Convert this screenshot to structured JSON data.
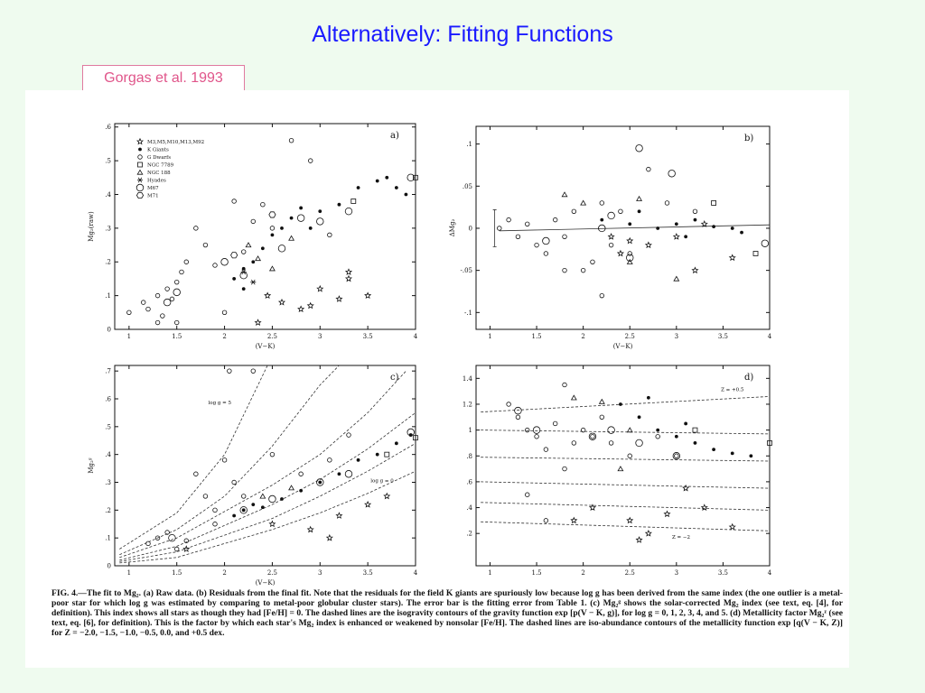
{
  "title": "Alternatively: Fitting Functions",
  "citation": "Gorgas et al. 1993",
  "caption": "FIG. 4.—The fit to Mg₂. (a) Raw data. (b) Residuals from the final fit. Note that the residuals for the field K giants are spuriously low because log g has been derived from the same index (the one outlier is a metal-poor star for which log g was estimated by comparing to metal-poor globular cluster stars). The error bar is the fitting error from Table 1. (c) Mg₂ᵍ shows the solar-corrected Mg₂ index (see text, eq. [4], for definition). This index shows all stars as though they had [Fe/H] = 0. The dashed lines are the isogravity contours of the gravity function exp [p(V − K, g)], for log g = 0, 1, 2, 3, 4, and 5. (d) Metallicity factor Mg₂ᶻ (see text, eq. [6], for definition). This is the factor by which each star's Mg₂ index is enhanced or weakened by nonsolar [Fe/H]. The dashed lines are iso-abundance contours of the metallicity function exp [q(V − K, Z)] for Z = −2.0, −1.5, −1.0, −0.5, 0.0, and +0.5 dex.",
  "chart_data": [
    {
      "type": "scatter",
      "panel_label": "a)",
      "xlabel": "(V−K)",
      "ylabel": "Mg₂(raw)",
      "xlim": [
        0.85,
        4.0
      ],
      "xticks": [
        1,
        1.5,
        2,
        2.5,
        3,
        3.5,
        4
      ],
      "ylim": [
        0,
        0.61
      ],
      "yticks": [
        0,
        {
          "value": 0.1,
          "label": ".1"
        },
        {
          "value": 0.2,
          "label": ".2"
        },
        {
          "value": 0.3,
          "label": ".3"
        },
        {
          "value": 0.4,
          "label": ".4"
        },
        {
          "value": 0.5,
          "label": ".5"
        },
        {
          "value": 0.6,
          "label": ".6"
        }
      ],
      "legend": "upper left",
      "series": [
        {
          "name": "M3,M5,M10,M13,M92",
          "marker": "star",
          "color": "#111",
          "x": [
            2.35,
            2.6,
            2.8,
            2.9,
            3.0,
            3.2,
            3.3,
            3.5,
            2.45,
            3.3
          ],
          "y": [
            0.02,
            0.08,
            0.06,
            0.07,
            0.12,
            0.09,
            0.15,
            0.1,
            0.1,
            0.17
          ]
        },
        {
          "name": "K Giants",
          "marker": "dot",
          "color": "#111",
          "x": [
            2.1,
            2.2,
            2.3,
            2.4,
            2.5,
            2.6,
            2.7,
            2.8,
            2.9,
            3.0,
            3.2,
            3.4,
            3.6,
            3.7,
            3.8,
            3.9,
            2.2
          ],
          "y": [
            0.15,
            0.18,
            0.2,
            0.24,
            0.28,
            0.3,
            0.33,
            0.36,
            0.3,
            0.35,
            0.37,
            0.42,
            0.44,
            0.45,
            0.42,
            0.4,
            0.12
          ]
        },
        {
          "name": "G Dwarfs",
          "marker": "circle",
          "color": "#111",
          "x": [
            1.0,
            1.15,
            1.2,
            1.3,
            1.35,
            1.4,
            1.45,
            1.5,
            1.55,
            1.6,
            1.7,
            1.8,
            1.9,
            2.0,
            2.1,
            2.2,
            2.3,
            2.4,
            2.5,
            2.7,
            2.9,
            3.1,
            1.3,
            1.5
          ],
          "y": [
            0.05,
            0.08,
            0.06,
            0.1,
            0.04,
            0.12,
            0.09,
            0.14,
            0.17,
            0.2,
            0.3,
            0.25,
            0.19,
            0.05,
            0.38,
            0.23,
            0.32,
            0.37,
            0.3,
            0.56,
            0.5,
            0.28,
            0.02,
            0.02
          ]
        },
        {
          "name": "NGC 7789",
          "marker": "square",
          "color": "#111",
          "x": [
            3.35,
            4.0
          ],
          "y": [
            0.38,
            0.45
          ]
        },
        {
          "name": "NGC 188",
          "marker": "triangle",
          "color": "#111",
          "x": [
            2.25,
            2.35,
            2.7,
            2.5
          ],
          "y": [
            0.25,
            0.21,
            0.27,
            0.18
          ]
        },
        {
          "name": "Hyades",
          "marker": "asterisk",
          "color": "#111",
          "x": [
            2.2,
            2.3
          ],
          "y": [
            0.17,
            0.14
          ]
        },
        {
          "name": "M67",
          "marker": "big-circle",
          "color": "#111",
          "x": [
            1.4,
            1.5,
            2.0,
            2.2,
            2.6,
            2.8,
            3.0,
            3.3,
            3.95
          ],
          "y": [
            0.08,
            0.11,
            0.2,
            0.16,
            0.24,
            0.33,
            0.32,
            0.35,
            0.45
          ]
        },
        {
          "name": "M71",
          "marker": "hexagon",
          "color": "#111",
          "x": [
            2.1,
            2.5
          ],
          "y": [
            0.22,
            0.34
          ]
        }
      ]
    },
    {
      "type": "scatter",
      "panel_label": "b)",
      "xlabel": "(V−K)",
      "ylabel": "ΔMg₂",
      "xlim": [
        0.85,
        4.0
      ],
      "xticks": [
        1,
        1.5,
        2,
        2.5,
        3,
        3.5,
        4
      ],
      "ylim": [
        -0.12,
        0.121
      ],
      "yticks": [
        {
          "value": -0.1,
          "label": "-.1"
        },
        {
          "value": -0.05,
          "label": "-.05"
        },
        0,
        {
          "value": 0.05,
          "label": ".05"
        },
        {
          "value": 0.1,
          "label": ".1"
        }
      ],
      "fit_line": {
        "x": [
          1.1,
          4.0
        ],
        "y": [
          -0.003,
          0.004
        ]
      },
      "error_bar": {
        "x": 1.05,
        "y": 0,
        "error": 0.022
      },
      "series": [
        {
          "marker": "star",
          "color": "#111",
          "x": [
            2.3,
            2.5,
            2.7,
            3.0,
            3.2,
            3.6,
            3.3,
            2.4
          ],
          "y": [
            -0.01,
            -0.015,
            -0.02,
            -0.01,
            -0.05,
            -0.035,
            0.005,
            -0.03
          ]
        },
        {
          "marker": "dot",
          "color": "#111",
          "x": [
            2.2,
            2.5,
            2.8,
            3.0,
            3.2,
            3.4,
            3.6,
            3.7,
            2.6,
            3.1
          ],
          "y": [
            0.01,
            0.005,
            0,
            0.005,
            0.01,
            0.002,
            0,
            -0.005,
            0.02,
            -0.01
          ]
        },
        {
          "marker": "circle",
          "color": "#111",
          "x": [
            1.1,
            1.2,
            1.3,
            1.4,
            1.5,
            1.6,
            1.7,
            1.8,
            1.9,
            2.0,
            2.1,
            2.2,
            2.3,
            2.4,
            2.5,
            2.7,
            2.9,
            2.2,
            1.8,
            3.2
          ],
          "y": [
            0,
            0.01,
            -0.01,
            0.005,
            -0.02,
            -0.03,
            0.01,
            -0.01,
            0.02,
            -0.05,
            -0.04,
            0.03,
            -0.02,
            0.02,
            -0.03,
            0.07,
            0.03,
            -0.08,
            -0.05,
            0.02
          ]
        },
        {
          "marker": "square",
          "color": "#111",
          "x": [
            3.85,
            3.4
          ],
          "y": [
            -0.03,
            0.03
          ]
        },
        {
          "marker": "triangle",
          "color": "#111",
          "x": [
            1.8,
            2.0,
            2.5,
            3.0,
            2.6
          ],
          "y": [
            0.04,
            0.03,
            -0.04,
            -0.06,
            0.035
          ]
        },
        {
          "marker": "big-circle",
          "color": "#111",
          "x": [
            1.6,
            2.2,
            2.3,
            2.6,
            2.95,
            2.5,
            3.95
          ],
          "y": [
            -0.015,
            0.0,
            0.015,
            0.095,
            0.065,
            -0.035,
            -0.018
          ]
        }
      ]
    },
    {
      "type": "scatter",
      "panel_label": "c)",
      "xlabel": "(V−K)",
      "ylabel": "Mg₂ᵍ",
      "xlim": [
        0.85,
        4.0
      ],
      "xticks": [
        1,
        1.5,
        2,
        2.5,
        3,
        3.5,
        4
      ],
      "ylim": [
        0,
        0.72
      ],
      "yticks": [
        0,
        {
          "value": 0.1,
          "label": ".1"
        },
        {
          "value": 0.2,
          "label": ".2"
        },
        {
          "value": 0.3,
          "label": ".3"
        },
        {
          "value": 0.4,
          "label": ".4"
        },
        {
          "value": 0.5,
          "label": ".5"
        },
        {
          "value": 0.6,
          "label": ".6"
        },
        {
          "value": 0.7,
          "label": ".7"
        }
      ],
      "curves": [
        {
          "x": [
            0.9,
            1.5,
            2.0,
            2.45
          ],
          "y": [
            0.06,
            0.19,
            0.4,
            0.72
          ]
        },
        {
          "x": [
            0.9,
            1.5,
            2.0,
            2.5,
            3.0,
            3.2
          ],
          "y": [
            0.04,
            0.13,
            0.25,
            0.43,
            0.65,
            0.72
          ]
        },
        {
          "x": [
            0.9,
            1.5,
            2.5,
            3.0,
            3.5,
            3.9
          ],
          "y": [
            0.03,
            0.1,
            0.29,
            0.4,
            0.55,
            0.7
          ]
        },
        {
          "x": [
            0.9,
            1.5,
            2.5,
            3.0,
            3.5,
            4.0
          ],
          "y": [
            0.02,
            0.07,
            0.22,
            0.31,
            0.42,
            0.55
          ]
        },
        {
          "x": [
            0.9,
            1.5,
            2.5,
            3.0,
            3.5,
            4.0
          ],
          "y": [
            0.015,
            0.05,
            0.17,
            0.25,
            0.34,
            0.44
          ]
        },
        {
          "x": [
            0.9,
            1.5,
            2.5,
            3.0,
            3.5,
            4.0
          ],
          "y": [
            0.01,
            0.03,
            0.13,
            0.19,
            0.26,
            0.34
          ]
        }
      ],
      "annotations": [
        {
          "text": "log g = 5",
          "x": 1.95,
          "y": 0.58
        },
        {
          "text": "log g = 0",
          "x": 3.65,
          "y": 0.3
        }
      ],
      "series": [
        {
          "marker": "star",
          "color": "#111",
          "x": [
            1.6,
            2.5,
            2.9,
            3.2,
            3.5,
            3.7,
            3.1
          ],
          "y": [
            0.06,
            0.15,
            0.13,
            0.18,
            0.22,
            0.25,
            0.1
          ]
        },
        {
          "marker": "dot",
          "color": "#111",
          "x": [
            2.1,
            2.2,
            2.3,
            2.4,
            2.6,
            2.8,
            3.0,
            3.2,
            3.4,
            3.6,
            3.8,
            3.95
          ],
          "y": [
            0.18,
            0.2,
            0.22,
            0.21,
            0.24,
            0.27,
            0.3,
            0.33,
            0.38,
            0.4,
            0.44,
            0.47
          ]
        },
        {
          "marker": "circle",
          "color": "#111",
          "x": [
            1.2,
            1.3,
            1.4,
            1.5,
            1.6,
            1.8,
            1.9,
            2.0,
            2.1,
            2.2,
            1.7,
            2.3,
            2.05,
            2.5,
            3.3,
            2.8,
            3.1,
            1.9
          ],
          "y": [
            0.08,
            0.1,
            0.12,
            0.06,
            0.09,
            0.25,
            0.2,
            0.38,
            0.3,
            0.25,
            0.33,
            0.7,
            0.7,
            0.4,
            0.47,
            0.33,
            0.38,
            0.15
          ]
        },
        {
          "marker": "square",
          "color": "#111",
          "x": [
            3.7,
            4.0
          ],
          "y": [
            0.4,
            0.46
          ]
        },
        {
          "marker": "triangle",
          "color": "#111",
          "x": [
            2.4,
            2.7
          ],
          "y": [
            0.25,
            0.28
          ]
        },
        {
          "marker": "big-circle",
          "color": "#111",
          "x": [
            1.45,
            2.2,
            2.5,
            3.0,
            3.3,
            3.95
          ],
          "y": [
            0.1,
            0.2,
            0.24,
            0.3,
            0.33,
            0.48
          ]
        }
      ]
    },
    {
      "type": "scatter",
      "panel_label": "d)",
      "xlim": [
        0.85,
        4.0
      ],
      "xticks": [
        1,
        1.5,
        2,
        2.5,
        3,
        3.5,
        4
      ],
      "ylim": [
        -0.05,
        1.5
      ],
      "yticks": [
        {
          "value": 0.2,
          "label": ".2"
        },
        {
          "value": 0.4,
          "label": ".4"
        },
        {
          "value": 0.6,
          "label": ".6"
        },
        {
          "value": 0.8,
          "label": ".8"
        },
        1,
        1.2,
        1.4
      ],
      "curves": [
        {
          "x": [
            0.9,
            4.0
          ],
          "y": [
            1.14,
            1.26
          ]
        },
        {
          "x": [
            0.9,
            4.0
          ],
          "y": [
            1.0,
            0.97
          ]
        },
        {
          "x": [
            0.9,
            4.0
          ],
          "y": [
            0.79,
            0.76
          ]
        },
        {
          "x": [
            0.9,
            4.0
          ],
          "y": [
            0.6,
            0.55
          ]
        },
        {
          "x": [
            0.9,
            4.0
          ],
          "y": [
            0.44,
            0.38
          ]
        },
        {
          "x": [
            0.9,
            4.0
          ],
          "y": [
            0.29,
            0.22
          ]
        }
      ],
      "annotations": [
        {
          "text": "Z = +0.5",
          "x": 3.6,
          "y": 1.3
        },
        {
          "text": "Z = −2",
          "x": 3.05,
          "y": 0.16
        }
      ],
      "series": [
        {
          "marker": "star",
          "color": "#111",
          "x": [
            2.1,
            2.5,
            2.7,
            2.9,
            3.1,
            3.3,
            3.6,
            2.6,
            1.9
          ],
          "y": [
            0.4,
            0.3,
            0.2,
            0.35,
            0.55,
            0.4,
            0.25,
            0.15,
            0.3
          ]
        },
        {
          "marker": "dot",
          "color": "#111",
          "x": [
            2.4,
            2.6,
            2.8,
            3.0,
            3.2,
            3.4,
            3.6,
            3.8,
            2.7,
            3.1
          ],
          "y": [
            1.2,
            1.1,
            1.0,
            0.95,
            0.9,
            0.85,
            0.82,
            0.8,
            1.25,
            1.05
          ]
        },
        {
          "marker": "circle",
          "color": "#111",
          "x": [
            1.2,
            1.3,
            1.4,
            1.5,
            1.6,
            1.7,
            1.8,
            1.9,
            2.0,
            2.1,
            2.2,
            2.3,
            2.5,
            1.4,
            1.6,
            1.8,
            2.8,
            3.0
          ],
          "y": [
            1.2,
            1.1,
            1.0,
            0.95,
            0.85,
            1.05,
            0.7,
            0.9,
            1.0,
            0.95,
            1.1,
            0.9,
            0.8,
            0.5,
            0.3,
            1.35,
            0.95,
            0.8
          ]
        },
        {
          "marker": "square",
          "color": "#111",
          "x": [
            3.2,
            4.0
          ],
          "y": [
            1.0,
            0.9
          ]
        },
        {
          "marker": "triangle",
          "color": "#111",
          "x": [
            1.9,
            2.2,
            2.4,
            2.5
          ],
          "y": [
            1.25,
            1.22,
            0.7,
            1.0
          ]
        },
        {
          "marker": "big-circle",
          "color": "#111",
          "x": [
            1.3,
            1.5,
            2.1,
            2.3,
            2.6,
            3.0
          ],
          "y": [
            1.15,
            1.0,
            0.95,
            1.0,
            0.9,
            0.8
          ]
        }
      ]
    }
  ]
}
